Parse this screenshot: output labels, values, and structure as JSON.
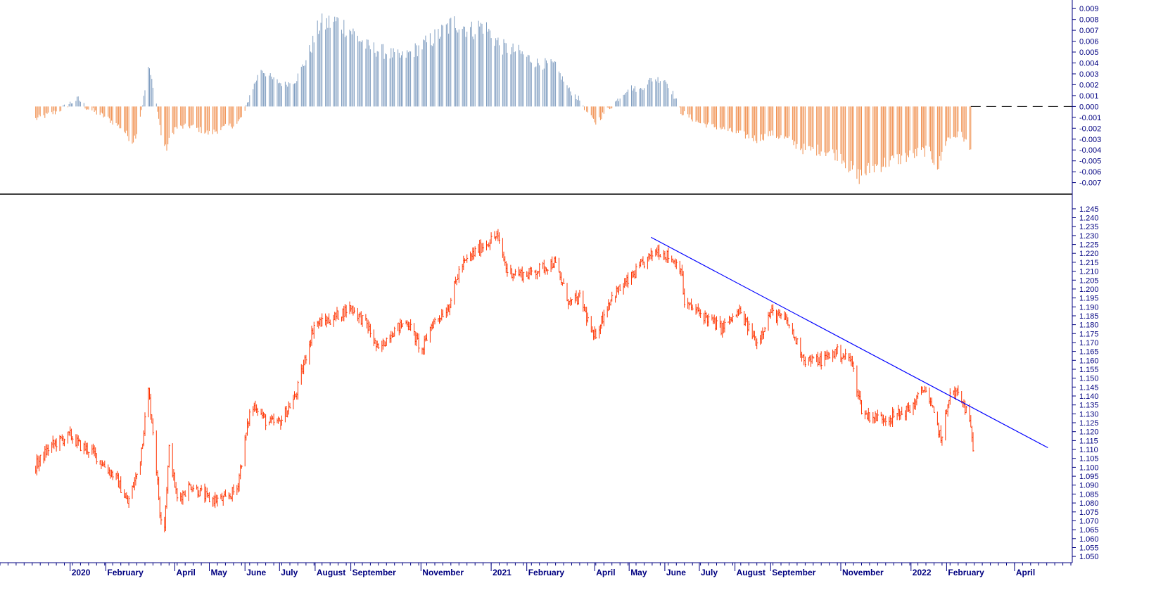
{
  "colors": {
    "background": "#ffffff",
    "osc_positive": "#7f9dc0",
    "osc_negative": "#f08d4b",
    "price": "#ff3300",
    "trendline": "#0000ff",
    "axis_text": "#000080",
    "separator": "#000000"
  },
  "chart_data": [
    {
      "type": "bar",
      "panel": "oscillator",
      "title": "",
      "xlabel": "",
      "ylabel": "",
      "ylim": [
        -0.0078,
        0.0094
      ],
      "yticks": [
        "0.009",
        "0.008",
        "0.007",
        "0.006",
        "0.005",
        "0.004",
        "0.003",
        "0.002",
        "0.001",
        "0.000",
        "-0.001",
        "-0.002",
        "-0.003",
        "-0.004",
        "-0.005",
        "-0.006",
        "-0.007"
      ],
      "zero_line": "dashed",
      "grid": false,
      "x_start": "2019-12",
      "x_end": "2022-02",
      "shape_points": [
        [
          "2019-12-01",
          -0.0012
        ],
        [
          "2019-12-20",
          -0.0005
        ],
        [
          "2020-01-01",
          0.0003
        ],
        [
          "2020-01-08",
          0.0007
        ],
        [
          "2020-01-15",
          -0.0001
        ],
        [
          "2020-02-01",
          -0.001
        ],
        [
          "2020-02-15",
          -0.002
        ],
        [
          "2020-02-24",
          -0.0032
        ],
        [
          "2020-02-28",
          -0.0024
        ],
        [
          "2020-03-05",
          0.0008
        ],
        [
          "2020-03-09",
          0.0036
        ],
        [
          "2020-03-14",
          0.0016
        ],
        [
          "2020-03-20",
          -0.0025
        ],
        [
          "2020-03-24",
          -0.004
        ],
        [
          "2020-04-01",
          -0.002
        ],
        [
          "2020-04-15",
          -0.0018
        ],
        [
          "2020-05-01",
          -0.0025
        ],
        [
          "2020-05-15",
          -0.0019
        ],
        [
          "2020-05-25",
          -0.0016
        ],
        [
          "2020-06-01",
          -0.0005
        ],
        [
          "2020-06-05",
          0.001
        ],
        [
          "2020-06-15",
          0.0035
        ],
        [
          "2020-06-25",
          0.0025
        ],
        [
          "2020-07-05",
          0.002
        ],
        [
          "2020-07-15",
          0.0024
        ],
        [
          "2020-07-25",
          0.0045
        ],
        [
          "2020-08-05",
          0.0075
        ],
        [
          "2020-08-20",
          0.0078
        ],
        [
          "2020-09-01",
          0.007
        ],
        [
          "2020-09-15",
          0.0055
        ],
        [
          "2020-10-01",
          0.005
        ],
        [
          "2020-10-15",
          0.0045
        ],
        [
          "2020-11-01",
          0.0055
        ],
        [
          "2020-11-15",
          0.0065
        ],
        [
          "2020-12-01",
          0.0078
        ],
        [
          "2020-12-15",
          0.007
        ],
        [
          "2020-12-25",
          0.0075
        ],
        [
          "2021-01-10",
          0.0055
        ],
        [
          "2021-01-25",
          0.005
        ],
        [
          "2021-02-10",
          0.004
        ],
        [
          "2021-02-25",
          0.0038
        ],
        [
          "2021-03-10",
          0.0015
        ],
        [
          "2021-03-20",
          0.0005
        ],
        [
          "2021-03-28",
          -0.001
        ],
        [
          "2021-04-02",
          -0.0015
        ],
        [
          "2021-04-10",
          -0.0005
        ],
        [
          "2021-04-20",
          0.0005
        ],
        [
          "2021-05-01",
          0.0018
        ],
        [
          "2021-05-10",
          0.0015
        ],
        [
          "2021-05-20",
          0.0025
        ],
        [
          "2021-06-01",
          0.0025
        ],
        [
          "2021-06-08",
          0.0012
        ],
        [
          "2021-06-15",
          -0.0005
        ],
        [
          "2021-07-01",
          -0.0015
        ],
        [
          "2021-07-20",
          -0.002
        ],
        [
          "2021-08-05",
          -0.0025
        ],
        [
          "2021-08-20",
          -0.003
        ],
        [
          "2021-09-01",
          -0.0025
        ],
        [
          "2021-09-15",
          -0.003
        ],
        [
          "2021-10-01",
          -0.004
        ],
        [
          "2021-10-15",
          -0.004
        ],
        [
          "2021-11-01",
          -0.0045
        ],
        [
          "2021-11-15",
          -0.0065
        ],
        [
          "2021-12-01",
          -0.0055
        ],
        [
          "2021-12-15",
          -0.005
        ],
        [
          "2022-01-01",
          -0.0045
        ],
        [
          "2022-01-15",
          -0.004
        ],
        [
          "2022-01-25",
          -0.0055
        ],
        [
          "2022-02-01",
          -0.003
        ],
        [
          "2022-02-14",
          -0.0025
        ],
        [
          "2022-02-22",
          -0.0042
        ]
      ]
    },
    {
      "type": "line",
      "panel": "price",
      "title": "",
      "xlabel": "",
      "ylabel": "",
      "ylim": [
        1.0465,
        1.2485
      ],
      "yticks": [
        "1.245",
        "1.240",
        "1.235",
        "1.230",
        "1.225",
        "1.220",
        "1.215",
        "1.210",
        "1.205",
        "1.200",
        "1.195",
        "1.190",
        "1.185",
        "1.180",
        "1.175",
        "1.170",
        "1.165",
        "1.160",
        "1.155",
        "1.150",
        "1.145",
        "1.140",
        "1.135",
        "1.130",
        "1.125",
        "1.120",
        "1.115",
        "1.110",
        "1.105",
        "1.100",
        "1.095",
        "1.090",
        "1.085",
        "1.080",
        "1.075",
        "1.070",
        "1.065",
        "1.060",
        "1.055",
        "1.050"
      ],
      "grid": false,
      "shape_points": [
        [
          "2019-12-01",
          1.1
        ],
        [
          "2019-12-15",
          1.112
        ],
        [
          "2020-01-01",
          1.118
        ],
        [
          "2020-01-10",
          1.112
        ],
        [
          "2020-01-20",
          1.109
        ],
        [
          "2020-02-01",
          1.1
        ],
        [
          "2020-02-10",
          1.094
        ],
        [
          "2020-02-20",
          1.08
        ],
        [
          "2020-03-01",
          1.1
        ],
        [
          "2020-03-09",
          1.143
        ],
        [
          "2020-03-14",
          1.115
        ],
        [
          "2020-03-19",
          1.075
        ],
        [
          "2020-03-23",
          1.068
        ],
        [
          "2020-03-27",
          1.11
        ],
        [
          "2020-04-03",
          1.082
        ],
        [
          "2020-04-15",
          1.09
        ],
        [
          "2020-05-01",
          1.082
        ],
        [
          "2020-05-15",
          1.082
        ],
        [
          "2020-05-25",
          1.088
        ],
        [
          "2020-06-05",
          1.13
        ],
        [
          "2020-06-10",
          1.135
        ],
        [
          "2020-06-20",
          1.125
        ],
        [
          "2020-07-01",
          1.125
        ],
        [
          "2020-07-15",
          1.14
        ],
        [
          "2020-07-31",
          1.18
        ],
        [
          "2020-08-15",
          1.183
        ],
        [
          "2020-09-01",
          1.19
        ],
        [
          "2020-09-15",
          1.18
        ],
        [
          "2020-09-25",
          1.165
        ],
        [
          "2020-10-05",
          1.175
        ],
        [
          "2020-10-20",
          1.182
        ],
        [
          "2020-11-02",
          1.165
        ],
        [
          "2020-11-10",
          1.18
        ],
        [
          "2020-11-25",
          1.19
        ],
        [
          "2020-12-05",
          1.212
        ],
        [
          "2020-12-20",
          1.222
        ],
        [
          "2021-01-06",
          1.23
        ],
        [
          "2021-01-15",
          1.21
        ],
        [
          "2021-02-01",
          1.208
        ],
        [
          "2021-02-15",
          1.212
        ],
        [
          "2021-02-25",
          1.215
        ],
        [
          "2021-03-10",
          1.192
        ],
        [
          "2021-03-20",
          1.195
        ],
        [
          "2021-03-31",
          1.172
        ],
        [
          "2021-04-15",
          1.195
        ],
        [
          "2021-05-01",
          1.205
        ],
        [
          "2021-05-10",
          1.212
        ],
        [
          "2021-05-25",
          1.222
        ],
        [
          "2021-06-05",
          1.218
        ],
        [
          "2021-06-15",
          1.212
        ],
        [
          "2021-06-18",
          1.192
        ],
        [
          "2021-07-05",
          1.185
        ],
        [
          "2021-07-20",
          1.178
        ],
        [
          "2021-08-05",
          1.187
        ],
        [
          "2021-08-20",
          1.17
        ],
        [
          "2021-09-01",
          1.187
        ],
        [
          "2021-09-15",
          1.182
        ],
        [
          "2021-10-01",
          1.16
        ],
        [
          "2021-10-15",
          1.16
        ],
        [
          "2021-10-28",
          1.165
        ],
        [
          "2021-11-10",
          1.16
        ],
        [
          "2021-11-20",
          1.13
        ],
        [
          "2021-12-01",
          1.128
        ],
        [
          "2021-12-15",
          1.128
        ],
        [
          "2022-01-01",
          1.133
        ],
        [
          "2022-01-13",
          1.145
        ],
        [
          "2022-01-28",
          1.115
        ],
        [
          "2022-02-03",
          1.14
        ],
        [
          "2022-02-10",
          1.142
        ],
        [
          "2022-02-18",
          1.132
        ],
        [
          "2022-02-23",
          1.118
        ],
        [
          "2022-02-24",
          1.112
        ]
      ],
      "trendline": {
        "from": [
          "2021-05-20",
          1.229
        ],
        "to": [
          "2022-04-30",
          1.111
        ]
      }
    }
  ],
  "xaxis": {
    "labels": [
      {
        "text": "2020",
        "date": "2020-01-01"
      },
      {
        "text": "February",
        "date": "2020-02-01"
      },
      {
        "text": "April",
        "date": "2020-04-01"
      },
      {
        "text": "May",
        "date": "2020-05-01"
      },
      {
        "text": "June",
        "date": "2020-06-01"
      },
      {
        "text": "July",
        "date": "2020-07-01"
      },
      {
        "text": "August",
        "date": "2020-08-01"
      },
      {
        "text": "September",
        "date": "2020-09-01"
      },
      {
        "text": "November",
        "date": "2020-11-01"
      },
      {
        "text": "2021",
        "date": "2021-01-01"
      },
      {
        "text": "February",
        "date": "2021-02-01"
      },
      {
        "text": "April",
        "date": "2021-04-01"
      },
      {
        "text": "May",
        "date": "2021-05-01"
      },
      {
        "text": "June",
        "date": "2021-06-01"
      },
      {
        "text": "July",
        "date": "2021-07-01"
      },
      {
        "text": "August",
        "date": "2021-08-01"
      },
      {
        "text": "September",
        "date": "2021-09-01"
      },
      {
        "text": "November",
        "date": "2021-11-01"
      },
      {
        "text": "2022",
        "date": "2022-01-01"
      },
      {
        "text": "February",
        "date": "2022-02-01"
      },
      {
        "text": "April",
        "date": "2022-04-01"
      }
    ]
  }
}
